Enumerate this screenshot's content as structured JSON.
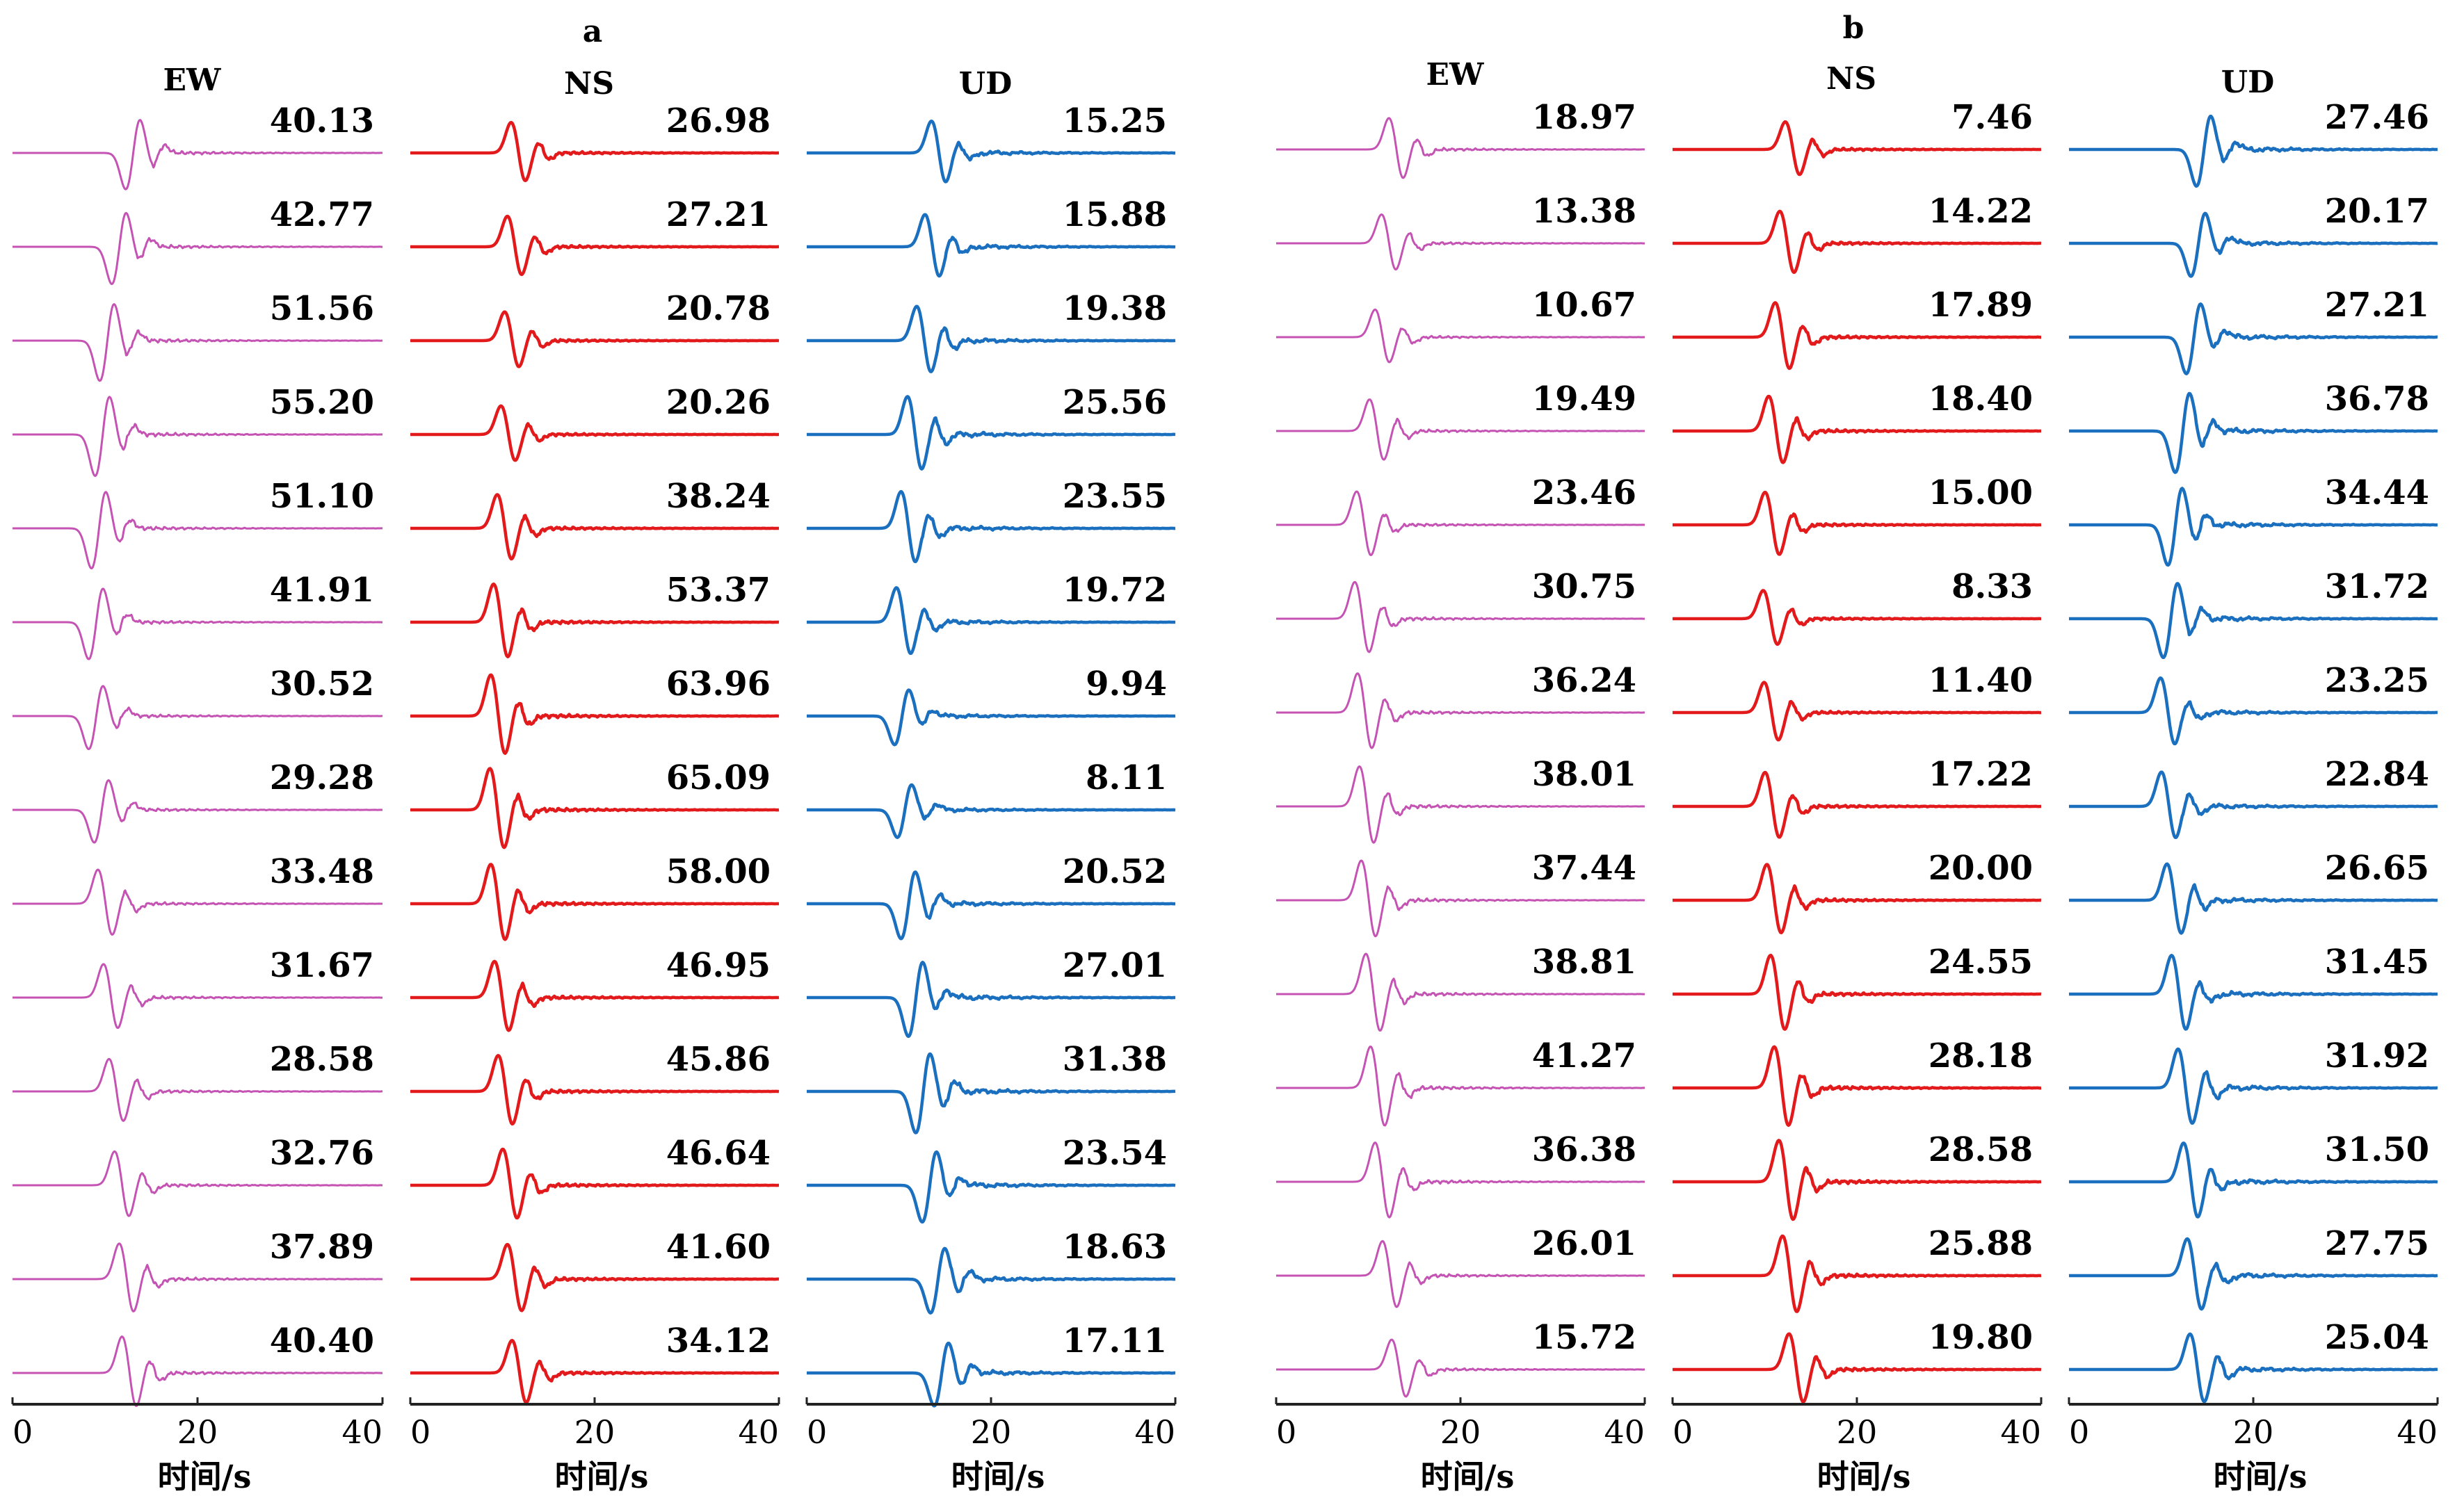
{
  "chart_data": {
    "type": "line",
    "panels": [
      {
        "label": "a",
        "components": [
          {
            "name": "EW",
            "color": "#c453b3",
            "amplitudes": [
              "40.13",
              "42.77",
              "51.56",
              "55.20",
              "51.10",
              "41.91",
              "30.52",
              "29.28",
              "33.48",
              "31.67",
              "28.58",
              "32.76",
              "37.89",
              "40.40"
            ],
            "pulse_time_s": [
              13,
              11.5,
              10.2,
              9.7,
              9.3,
              9.0,
              9.0,
              9.6,
              10.0,
              10.6,
              11.2,
              11.8,
              12.3,
              12.6
            ],
            "polarity": [
              -1,
              -1,
              -1,
              -1,
              -1,
              -1,
              -1,
              -1,
              1,
              1,
              1,
              1,
              1,
              1
            ]
          },
          {
            "name": "NS",
            "color": "#e31a1c",
            "amplitudes": [
              "26.98",
              "27.21",
              "20.78",
              "20.26",
              "38.24",
              "53.37",
              "63.96",
              "65.09",
              "58.00",
              "46.95",
              "45.86",
              "46.64",
              "41.60",
              "34.12"
            ],
            "pulse_time_s": [
              11.7,
              11.3,
              11.0,
              10.6,
              10.2,
              9.8,
              9.5,
              9.4,
              9.5,
              9.9,
              10.3,
              10.8,
              11.3,
              11.8
            ],
            "polarity": [
              1,
              1,
              1,
              1,
              1,
              1,
              1,
              1,
              1,
              1,
              1,
              1,
              1,
              1
            ]
          },
          {
            "name": "UD",
            "color": "#1b6fbf",
            "amplitudes": [
              "15.25",
              "15.88",
              "19.38",
              "25.56",
              "23.55",
              "19.72",
              "9.94",
              "8.11",
              "20.52",
              "27.01",
              "31.38",
              "23.54",
              "18.63",
              "17.11"
            ],
            "pulse_time_s": [
              14.3,
              13.6,
              12.7,
              11.7,
              11.0,
              10.5,
              10.3,
              10.6,
              11.0,
              11.8,
              12.6,
              13.3,
              14.2,
              14.6
            ],
            "polarity": [
              1,
              1,
              1,
              1,
              1,
              1,
              -1,
              -1,
              -1,
              -1,
              -1,
              -1,
              -1,
              -1
            ]
          }
        ]
      },
      {
        "label": "b",
        "components": [
          {
            "name": "EW",
            "color": "#c453b3",
            "amplitudes": [
              "18.97",
              "13.38",
              "10.67",
              "19.49",
              "23.46",
              "30.75",
              "36.24",
              "38.01",
              "37.44",
              "38.81",
              "41.27",
              "36.38",
              "26.01",
              "15.72"
            ],
            "pulse_time_s": [
              13.0,
              12.2,
              11.5,
              10.9,
              9.5,
              9.3,
              9.6,
              9.8,
              10.0,
              10.5,
              11.0,
              11.5,
              12.3,
              13.3
            ],
            "polarity": [
              1,
              1,
              1,
              1,
              1,
              1,
              1,
              1,
              1,
              1,
              1,
              1,
              1,
              1
            ]
          },
          {
            "name": "NS",
            "color": "#e31a1c",
            "amplitudes": [
              "7.46",
              "14.22",
              "17.89",
              "18.40",
              "15.00",
              "8.33",
              "11.40",
              "17.22",
              "20.00",
              "24.55",
              "28.18",
              "28.58",
              "25.88",
              "19.80"
            ],
            "pulse_time_s": [
              13.0,
              12.4,
              11.9,
              11.2,
              10.8,
              10.6,
              10.7,
              10.8,
              11.0,
              11.4,
              11.8,
              12.3,
              12.7,
              13.4
            ],
            "polarity": [
              1,
              1,
              1,
              1,
              1,
              1,
              1,
              1,
              1,
              1,
              1,
              1,
              1,
              1
            ]
          },
          {
            "name": "UD",
            "color": "#1b6fbf",
            "amplitudes": [
              "27.46",
              "20.17",
              "27.21",
              "36.78",
              "34.44",
              "31.72",
              "23.25",
              "22.84",
              "26.65",
              "31.45",
              "31.92",
              "31.50",
              "27.75",
              "25.04"
            ],
            "pulse_time_s": [
              14.6,
              14.0,
              13.5,
              12.3,
              11.5,
              11.0,
              10.7,
              10.8,
              11.4,
              11.9,
              12.6,
              13.2,
              13.6,
              13.9
            ],
            "polarity": [
              -1,
              -1,
              -1,
              -1,
              -1,
              -1,
              1,
              1,
              1,
              1,
              1,
              1,
              1,
              1
            ]
          }
        ]
      }
    ],
    "x_axis": {
      "label": "时间/s",
      "range": [
        0,
        40
      ],
      "ticks": [
        "0",
        "20",
        "40"
      ]
    },
    "grid": false,
    "legend": "none"
  }
}
